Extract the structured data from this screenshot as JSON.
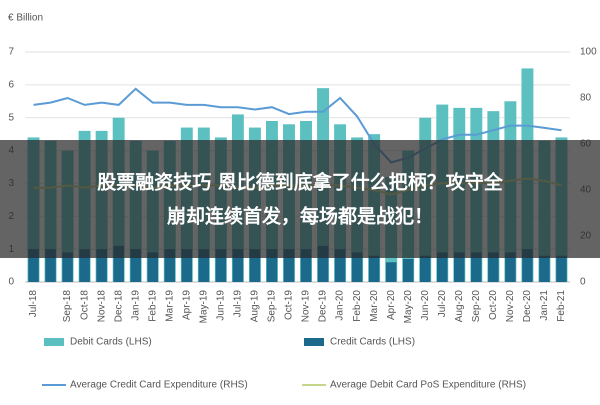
{
  "chart_data": {
    "type": "bar_line_dual",
    "y_axis_label": "€ Billion",
    "categories": [
      "Jul-18",
      null,
      "Sep-18",
      "Oct-18",
      "Nov-18",
      "Dec-18",
      "Jan-19",
      "Feb-19",
      "Mar-19",
      "Apr-19",
      "May-19",
      "Jun-19",
      "Jul-19",
      "Aug-19",
      "Sep-19",
      "Oct-19",
      "Nov-19",
      "Dec-19",
      "Jan-20",
      "Feb-20",
      "Mar-20",
      "Apr-20",
      "May-20",
      "Jun-20",
      "Jul-20",
      "Aug-20",
      "Sep-20",
      "Oct-20",
      "Nov-20",
      "Dec-20",
      "Jan-21",
      "Feb-21"
    ],
    "series": [
      {
        "name": "Debit Cards (LHS)",
        "kind": "bar",
        "color": "#5cc0c0",
        "values": [
          4.4,
          4.3,
          4.0,
          4.6,
          4.6,
          5.0,
          4.3,
          4.0,
          4.3,
          4.7,
          4.7,
          4.4,
          5.1,
          4.7,
          4.9,
          4.8,
          4.9,
          5.9,
          4.8,
          4.4,
          4.5,
          3.2,
          4.0,
          5.0,
          5.4,
          5.3,
          5.3,
          5.2,
          5.5,
          6.5,
          4.3,
          4.4
        ]
      },
      {
        "name": "Credit Cards (LHS)",
        "kind": "bar",
        "color": "#1b6a8c",
        "values": [
          1.0,
          1.0,
          0.9,
          1.0,
          1.0,
          1.1,
          1.0,
          0.9,
          1.0,
          1.0,
          1.0,
          1.0,
          1.0,
          1.0,
          1.0,
          1.0,
          1.0,
          1.1,
          1.0,
          0.9,
          0.8,
          0.6,
          0.7,
          0.8,
          0.9,
          0.9,
          0.9,
          0.9,
          0.9,
          1.0,
          0.8,
          0.8
        ]
      },
      {
        "name": "Average Credit Card Expenditure (RHS)",
        "kind": "line",
        "axis": "y2",
        "color": "#5b9bd5",
        "values": [
          77,
          78,
          80,
          77,
          78,
          77,
          84,
          78,
          78,
          77,
          77,
          76,
          76,
          75,
          76,
          73,
          74,
          74,
          80,
          72,
          60,
          52,
          54,
          58,
          62,
          64,
          64,
          66,
          68,
          68,
          67,
          66
        ]
      },
      {
        "name": "Average Debit Card PoS Expenditure (RHS)",
        "kind": "line",
        "axis": "y2",
        "color": "#c5d68a",
        "values": [
          41,
          41,
          42,
          41,
          42,
          42,
          42,
          41,
          42,
          42,
          42,
          42,
          41,
          41,
          42,
          42,
          42,
          42,
          42,
          41,
          40,
          38,
          40,
          42,
          43,
          43,
          43,
          43,
          44,
          45,
          44,
          42
        ]
      }
    ],
    "ylim": [
      0,
      7
    ],
    "yticks": [
      0,
      1,
      2,
      3,
      4,
      5,
      6,
      7
    ],
    "y2lim": [
      0,
      100
    ],
    "y2ticks": [
      0,
      20,
      40,
      60,
      80,
      100
    ],
    "grid": true
  },
  "overlay": {
    "lines": [
      "股票融资技巧 恩比德到底拿了什么把柄？攻守全",
      "崩却连续首发，每场都是战犯！"
    ]
  }
}
